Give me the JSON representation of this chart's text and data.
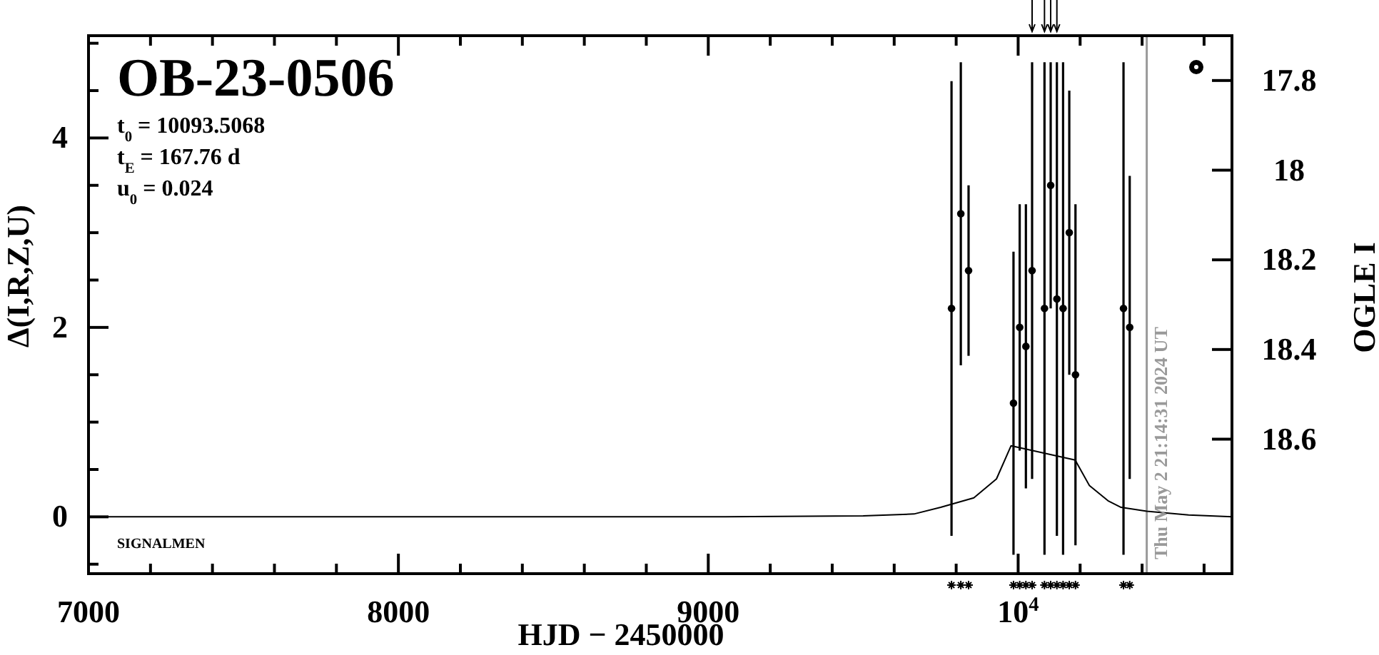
{
  "chart_data": {
    "type": "scatter",
    "title": "OB-23-0506",
    "annotations": [
      "t$_{0}$ = 10093.5068",
      "t$_{E}$ = 167.76 d",
      "u$_{0}$ = 0.024",
      "SIGNALMEN",
      {
        "text": "Thu May 2 21:14:31 2024 UT",
        "x": 10415
      }
    ],
    "xlabel": "HJD − 2450000",
    "ylabel": "Δ(I,R,Z,U)",
    "y2label": "OGLE I",
    "xlim": [
      7000,
      10690
    ],
    "xticks": [
      7000,
      {
        "value": 7200,
        "label": null
      },
      {
        "value": 7400,
        "label": null
      },
      {
        "value": 7600,
        "label": null
      },
      {
        "value": 7800,
        "label": null
      },
      8000,
      {
        "value": 8200,
        "label": null
      },
      {
        "value": 8400,
        "label": null
      },
      {
        "value": 8600,
        "label": null
      },
      {
        "value": 8800,
        "label": null
      },
      9000,
      {
        "value": 9200,
        "label": null
      },
      {
        "value": 9400,
        "label": null
      },
      {
        "value": 9600,
        "label": null
      },
      {
        "value": 9800,
        "label": null
      },
      {
        "value": 10000,
        "label": "10$^{4}$"
      },
      {
        "value": 10200,
        "label": null
      },
      {
        "value": 10400,
        "label": null
      },
      {
        "value": 10600,
        "label": null
      }
    ],
    "ylim": [
      -0.6,
      5.08
    ],
    "yticks": [
      {
        "value": -0.5,
        "label": null
      },
      0,
      {
        "value": 0.5,
        "label": null
      },
      {
        "value": 1,
        "label": null
      },
      {
        "value": 1.5,
        "label": null
      },
      2,
      {
        "value": 2.5,
        "label": null
      },
      {
        "value": 3,
        "label": null
      },
      {
        "value": 3.5,
        "label": null
      },
      4,
      {
        "value": 4.5,
        "label": null
      },
      {
        "value": 5,
        "label": null
      }
    ],
    "y2lim": [
      18.9,
      17.7
    ],
    "y2ticks": [
      17.8,
      18,
      18.2,
      18.4,
      18.6
    ],
    "ref_lines": [
      {
        "axis": "x",
        "value": 10415,
        "color": "#999999"
      }
    ],
    "series": [
      {
        "type": "line",
        "color": "#000000",
        "x": [
          7000,
          8000,
          9000,
          9500,
          9664,
          9750,
          9857,
          9930,
          9977,
          10184,
          10230,
          10290,
          10332,
          10415,
          10550,
          10690
        ],
        "values": [
          0,
          0,
          0,
          0.01,
          0.03,
          0.1,
          0.2,
          0.4,
          0.75,
          0.6,
          0.33,
          0.17,
          0.1,
          0.06,
          0.02,
          0
        ]
      },
      {
        "color": "#000000",
        "marker": "circle",
        "x": [
          9785,
          9815,
          9840,
          9985,
          10005,
          10025,
          10045,
          10085,
          10105,
          10125,
          10145,
          10165,
          10185,
          10340,
          10360
        ],
        "values": [
          2.2,
          3.2,
          2.6,
          1.2,
          2.0,
          1.8,
          2.6,
          2.2,
          3.5,
          2.3,
          2.2,
          3.0,
          1.5,
          2.2,
          2.0
        ],
        "errors": [
          2.4,
          1.6,
          0.9,
          1.6,
          1.3,
          1.5,
          2.2,
          2.6,
          1.3,
          2.5,
          2.6,
          1.5,
          1.8,
          2.6,
          1.6
        ]
      }
    ]
  }
}
